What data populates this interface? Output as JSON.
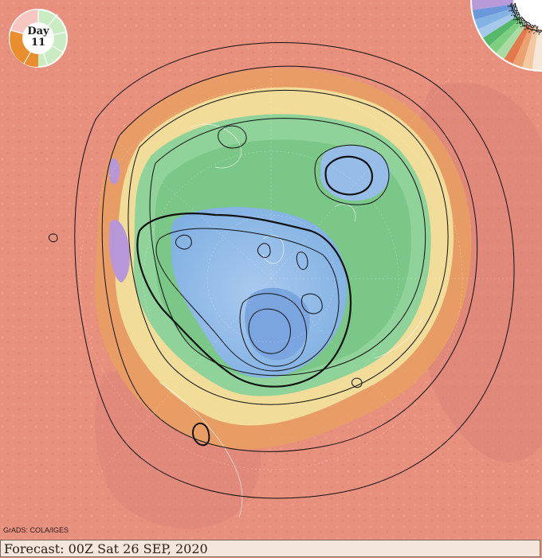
{
  "badge": {
    "title": "Day",
    "day": "11"
  },
  "footer": {
    "text": "Forecast: 00Z Sat 26 SEP, 2020"
  },
  "credit": {
    "text": "GrADS: COLA/IGES"
  },
  "scale": {
    "labels": [
      "-4",
      "-8",
      "-12",
      "-16",
      "-20",
      "-24",
      "-28",
      "-32",
      "-36",
      "-40",
      "-44"
    ],
    "colors": [
      "#f6e7d8",
      "#f3c8a0",
      "#eda070",
      "#e27a4d",
      "#a9dba3",
      "#7fcf82",
      "#56b96a",
      "#a6c8ea",
      "#84b2e4",
      "#6b98da",
      "#b99ad8"
    ]
  },
  "colors": {
    "warm": "#e8907e",
    "orange": "#e9a062",
    "yellow": "#f2e3a0",
    "green": "#8fd39a",
    "blue": "#9ec2ea",
    "purple": "#b797d8",
    "contour": "#111111"
  }
}
